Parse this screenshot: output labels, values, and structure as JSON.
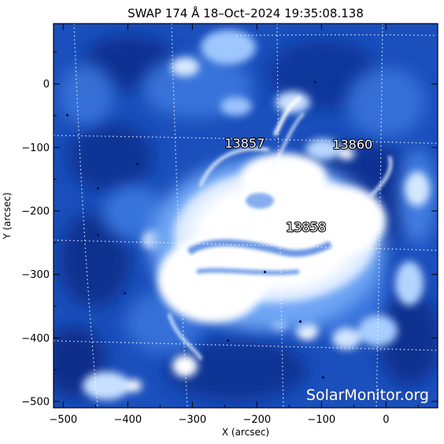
{
  "title": "SWAP 174 Å 18–Oct–2024 19:35:08.138",
  "x_axis": {
    "label": "X (arcsec)",
    "range": [
      -515,
      80
    ],
    "ticks": [
      -500,
      -400,
      -300,
      -200,
      -100,
      0
    ]
  },
  "y_axis": {
    "label": "Y (arcsec)",
    "range": [
      -510,
      95
    ],
    "ticks": [
      0,
      -100,
      -200,
      -300,
      -400,
      -500
    ]
  },
  "grid": "dotted heliographic grid",
  "regions": [
    {
      "label": "13857",
      "x": -250,
      "y": -100
    },
    {
      "label": "13860",
      "x": -83,
      "y": -102
    },
    {
      "label": "13858",
      "x": -155,
      "y": -232
    }
  ],
  "watermark": "SolarMonitor.org",
  "colors": {
    "deep": "#062a82",
    "mid": "#1f5fd2",
    "bright": "#9cc6ff",
    "white": "#ffffff",
    "grid": "#ffffff"
  }
}
